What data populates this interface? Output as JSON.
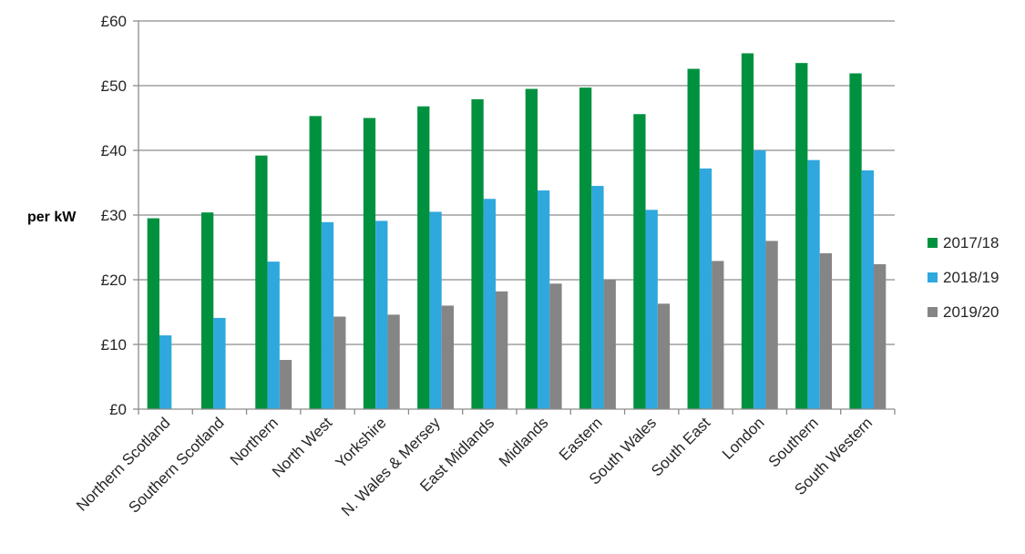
{
  "chart_data": {
    "type": "bar",
    "title": "",
    "xlabel": "",
    "ylabel": "per kW",
    "ylim": [
      0,
      60
    ],
    "yticks": [
      "£0",
      "£10",
      "£20",
      "£30",
      "£40",
      "£50",
      "£60"
    ],
    "grid": true,
    "legend_position": "right",
    "categories": [
      "Northern Scotland",
      "Southern Scotland",
      "Northern",
      "North West",
      "Yorkshire",
      "N. Wales & Mersey",
      "East Midlands",
      "Midlands",
      "Eastern",
      "South Wales",
      "South East",
      "London",
      "Southern",
      "South Western"
    ],
    "series": [
      {
        "name": "2017/18",
        "color": "#00913F",
        "values": [
          29.5,
          30.4,
          39.2,
          45.3,
          45.0,
          46.8,
          47.9,
          49.5,
          49.7,
          45.6,
          52.6,
          55.0,
          53.5,
          51.9
        ]
      },
      {
        "name": "2018/19",
        "color": "#2FA8DE",
        "values": [
          11.4,
          14.1,
          22.8,
          28.9,
          29.1,
          30.5,
          32.5,
          33.8,
          34.5,
          30.8,
          37.2,
          40.0,
          38.5,
          36.9
        ]
      },
      {
        "name": "2019/20",
        "color": "#858585",
        "values": [
          null,
          null,
          7.6,
          14.3,
          14.6,
          16.0,
          18.2,
          19.4,
          20.0,
          16.3,
          22.9,
          26.0,
          24.1,
          22.4
        ]
      }
    ]
  }
}
